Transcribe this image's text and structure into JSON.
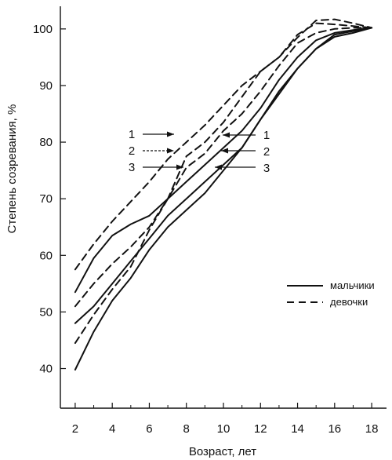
{
  "chart_data": {
    "type": "line",
    "xlabel": "Возраст, лет",
    "ylabel": "Степень созревания, %",
    "xlim": [
      1.2,
      18.8
    ],
    "ylim": [
      33,
      104
    ],
    "x_ticks": [
      2,
      4,
      6,
      8,
      10,
      12,
      14,
      16,
      18
    ],
    "x_minor_ticks": [
      3,
      5,
      7,
      9,
      11,
      13,
      15,
      17
    ],
    "y_ticks": [
      40,
      50,
      60,
      70,
      80,
      90,
      100
    ],
    "grid": false,
    "legend_position": "right",
    "legend": [
      {
        "label": "мальчики",
        "style": "solid"
      },
      {
        "label": "девочки",
        "style": "dashed"
      }
    ],
    "series": [
      {
        "group": "мальчики",
        "curve": "1",
        "style": "solid",
        "x": [
          2,
          3,
          4,
          5,
          6,
          7,
          8,
          9,
          10,
          11,
          12,
          13,
          14,
          15,
          16,
          17,
          18
        ],
        "y": [
          53.5,
          59.5,
          63.5,
          65.5,
          67,
          70,
          73,
          76,
          79,
          82,
          86,
          91,
          95,
          98,
          99.3,
          99.8,
          100.2
        ]
      },
      {
        "group": "мальчики",
        "curve": "2",
        "style": "solid",
        "x": [
          2,
          3,
          4,
          5,
          6,
          7,
          8,
          9,
          10,
          11,
          12,
          13,
          14,
          15,
          16,
          17,
          18
        ],
        "y": [
          48,
          51,
          55,
          59,
          63,
          67,
          70,
          73,
          76,
          79,
          84,
          89,
          93,
          96.5,
          99,
          99.6,
          100.2
        ]
      },
      {
        "group": "мальчики",
        "curve": "3",
        "style": "solid",
        "x": [
          2,
          3,
          4,
          5,
          6,
          7,
          8,
          9,
          10,
          11,
          12,
          13,
          14,
          15,
          16,
          17,
          18
        ],
        "y": [
          39.8,
          46.5,
          52,
          56,
          61,
          65,
          68,
          71,
          75,
          79,
          84,
          88.5,
          93,
          96.5,
          98.6,
          99.3,
          100.2
        ]
      },
      {
        "group": "девочки",
        "curve": "1",
        "style": "dashed",
        "x": [
          2,
          3,
          4,
          5,
          6,
          7,
          8,
          9,
          10,
          11,
          12,
          13,
          14,
          15,
          16,
          17,
          18
        ],
        "y": [
          57.5,
          62,
          66,
          69.5,
          73,
          77,
          80,
          83,
          86.5,
          90,
          92.5,
          95,
          98.5,
          101.5,
          101.7,
          101,
          100.2
        ]
      },
      {
        "group": "девочки",
        "curve": "2",
        "style": "dashed",
        "x": [
          2,
          3,
          4,
          5,
          6,
          7,
          8,
          9,
          10,
          11,
          12,
          13,
          14,
          15,
          16,
          17,
          18
        ],
        "y": [
          51,
          55,
          58.5,
          61.5,
          65,
          70,
          77.5,
          80,
          83.5,
          88,
          92.5,
          95,
          99,
          101,
          100.8,
          100.5,
          100.2
        ]
      },
      {
        "group": "девочки",
        "curve": "3",
        "style": "dashed",
        "x": [
          2,
          3,
          4,
          5,
          6,
          7,
          8,
          9,
          10,
          11,
          12,
          13,
          14,
          15,
          16,
          17,
          18
        ],
        "y": [
          44.5,
          49.5,
          54,
          58,
          64.5,
          70,
          75.5,
          78,
          82,
          85,
          89,
          93.5,
          97.5,
          99.3,
          100,
          100.2,
          100.2
        ]
      }
    ],
    "annotations": {
      "left": [
        "1",
        "2",
        "3"
      ],
      "right": [
        "1",
        "2",
        "3"
      ]
    }
  }
}
